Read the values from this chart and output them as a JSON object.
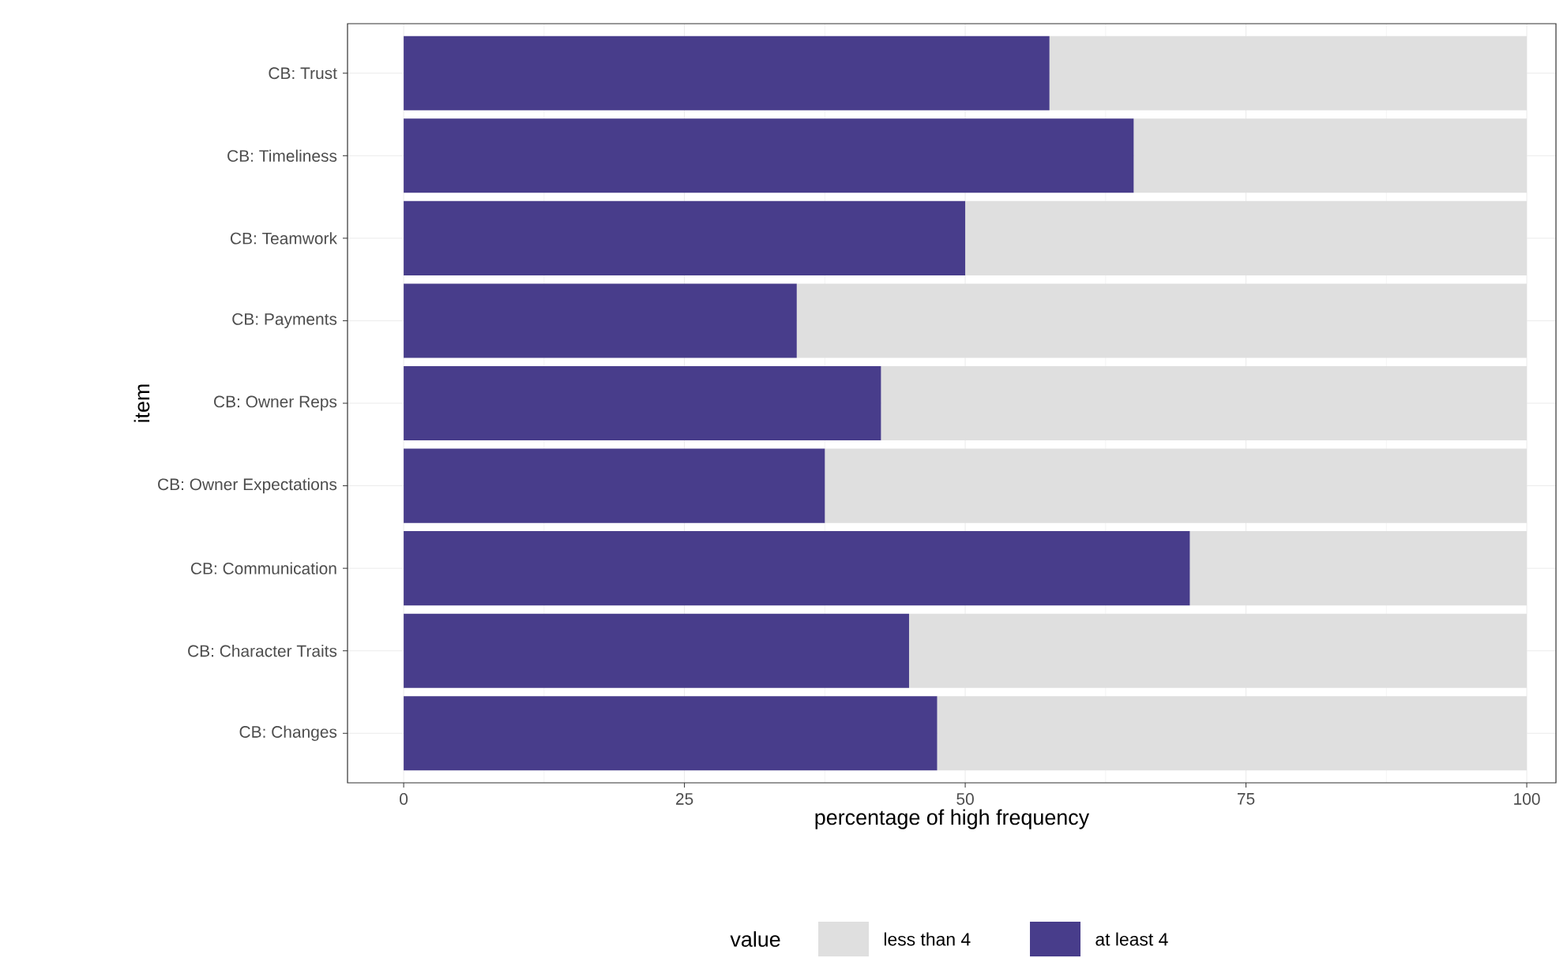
{
  "chart_data": {
    "type": "bar",
    "orientation": "horizontal",
    "stacked": true,
    "xlabel": "percentage of high frequency",
    "ylabel": "item",
    "legend_title": "value",
    "categories": [
      "CB: Trust",
      "CB: Timeliness",
      "CB: Teamwork",
      "CB: Payments",
      "CB: Owner Reps",
      "CB: Owner Expectations",
      "CB: Communication",
      "CB: Character Traits",
      "CB: Changes"
    ],
    "series": [
      {
        "name": "at least 4",
        "color": "#483d8b",
        "values": [
          57.5,
          65,
          50,
          35,
          42.5,
          37.5,
          70,
          45,
          47.5
        ]
      },
      {
        "name": "less than 4",
        "color": "#dfdfdf",
        "values": [
          42.5,
          35,
          50,
          65,
          57.5,
          62.5,
          30,
          55,
          52.5
        ]
      }
    ],
    "xlim": [
      -5,
      102.6
    ],
    "xticks": [
      0,
      25,
      50,
      75,
      100
    ],
    "grid": true,
    "legend": "bottom"
  }
}
